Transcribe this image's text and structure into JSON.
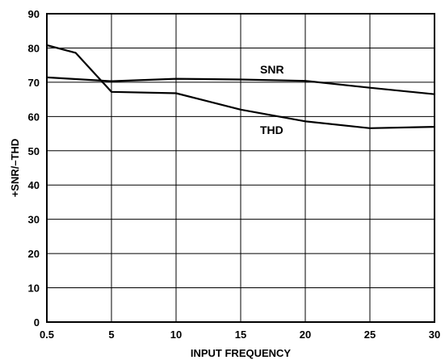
{
  "chart_data": {
    "type": "line",
    "title": "",
    "xlabel": "INPUT FREQUENCY",
    "ylabel": "+SNR/–THD",
    "x_ticks": [
      0.5,
      5,
      10,
      15,
      20,
      25,
      30
    ],
    "y_ticks": [
      0,
      10,
      20,
      30,
      40,
      50,
      60,
      70,
      80,
      90
    ],
    "xlim": [
      0.5,
      30
    ],
    "ylim": [
      0,
      90
    ],
    "grid": true,
    "line_color": "#000000",
    "series": [
      {
        "name": "SNR",
        "x": [
          0.5,
          5,
          10,
          15,
          20,
          25,
          30
        ],
        "y": [
          71.4,
          70.3,
          71.0,
          70.8,
          70.4,
          68.4,
          66.5
        ]
      },
      {
        "name": "THD",
        "x": [
          0.5,
          2.5,
          5,
          10,
          15,
          20,
          25,
          30
        ],
        "y": [
          80.8,
          78.6,
          67.2,
          66.8,
          62.0,
          58.6,
          56.6,
          57.0
        ]
      }
    ]
  }
}
